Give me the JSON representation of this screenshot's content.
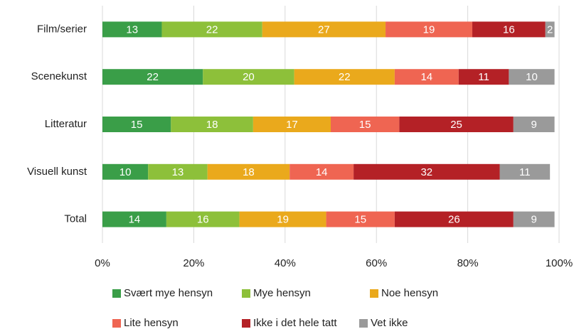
{
  "chart_data": {
    "type": "stacked_barh",
    "categories": [
      "Film/serier",
      "Scenekunst",
      "Litteratur",
      "Visuell kunst",
      "Total"
    ],
    "series": [
      {
        "name": "Svært mye hensyn",
        "color": "#3a9e48",
        "values": [
          13,
          22,
          15,
          10,
          14
        ]
      },
      {
        "name": "Mye hensyn",
        "color": "#8dc03a",
        "values": [
          22,
          20,
          18,
          13,
          16
        ]
      },
      {
        "name": "Noe hensyn",
        "color": "#eaa91c",
        "values": [
          27,
          22,
          17,
          18,
          19
        ]
      },
      {
        "name": "Lite hensyn",
        "color": "#ef6552",
        "values": [
          19,
          14,
          15,
          14,
          15
        ]
      },
      {
        "name": "Ikke i det hele tatt",
        "color": "#b42126",
        "values": [
          16,
          11,
          25,
          32,
          26
        ]
      },
      {
        "name": "Vet ikke",
        "color": "#9a9a9a",
        "values": [
          2,
          10,
          9,
          11,
          9
        ]
      }
    ],
    "xlim": [
      0,
      100
    ],
    "xticks": [
      {
        "value": 0,
        "label": "0%"
      },
      {
        "value": 20,
        "label": "20%"
      },
      {
        "value": 40,
        "label": "40%"
      },
      {
        "value": 60,
        "label": "60%"
      },
      {
        "value": 80,
        "label": "80%"
      },
      {
        "value": 100,
        "label": "100%"
      }
    ],
    "grid": true,
    "legend": "bottom"
  }
}
